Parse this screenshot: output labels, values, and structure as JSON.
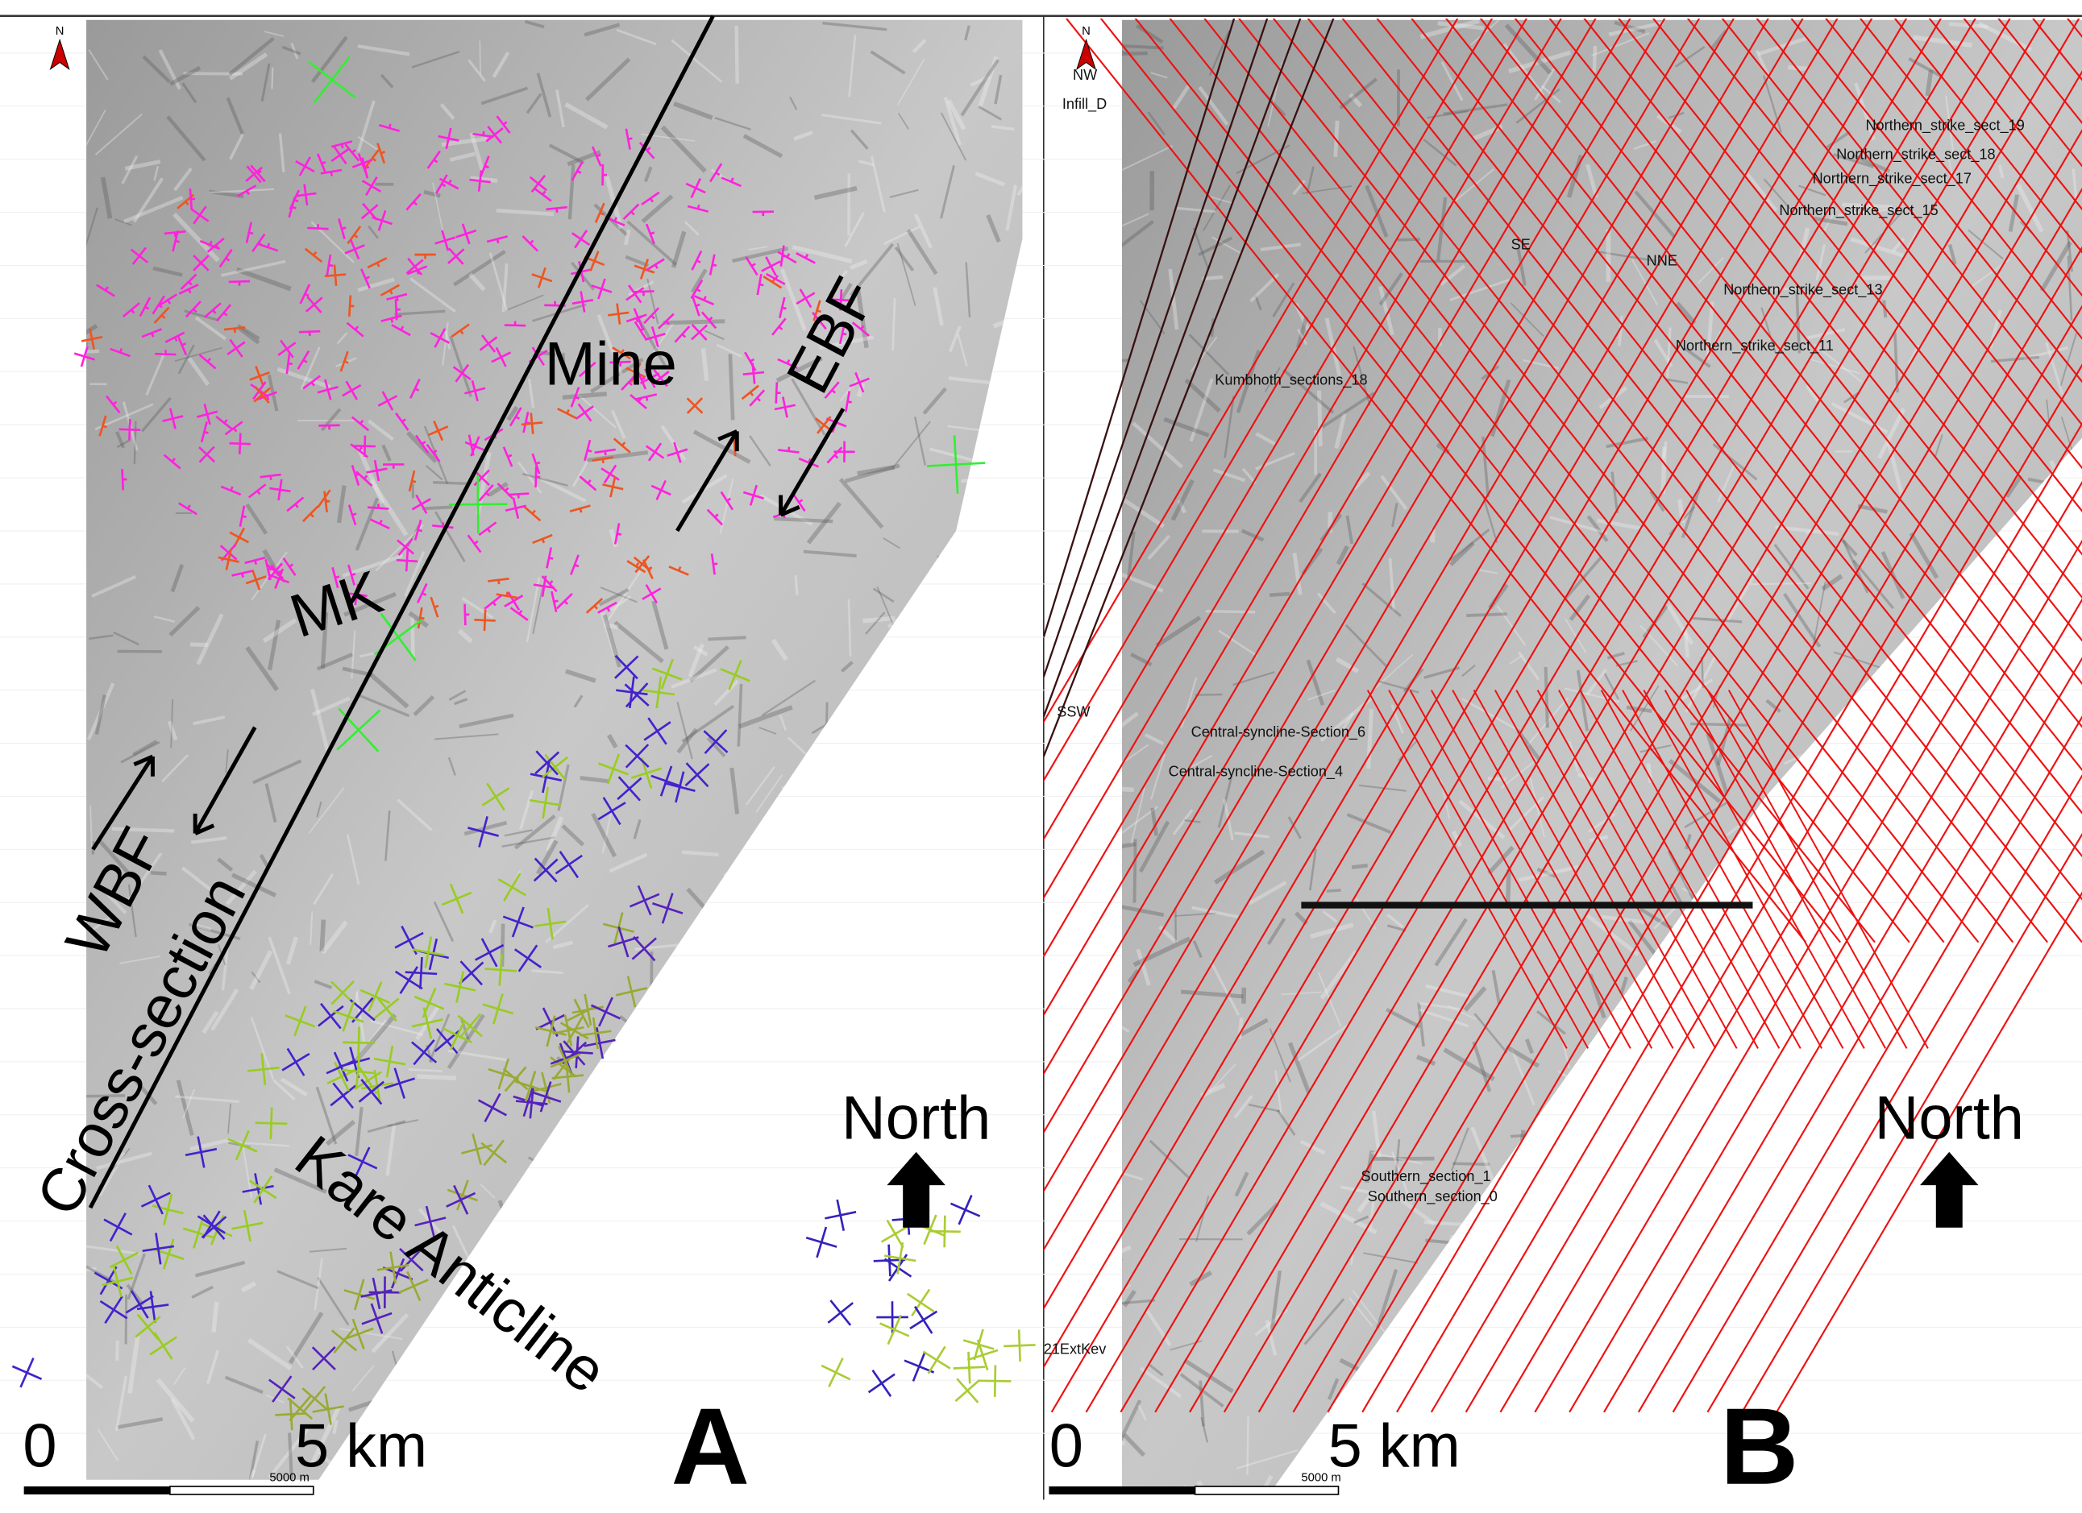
{
  "panels": [
    {
      "letter": "A",
      "north_symbol": "N",
      "north": "North",
      "labels": [
        "Mine",
        "EBF",
        "MK",
        "WBF",
        "Cross-section",
        "Kare Anticline"
      ],
      "scale": {
        "start": "0",
        "end": "5 km",
        "bar": "5000 m"
      }
    },
    {
      "letter": "B",
      "north_symbol": "N",
      "north": "North",
      "labels": [
        "Northern_strike_sect_19",
        "Northern_strike_sect_18",
        "Northern_strike_sect_17",
        "Northern_strike_sect_15",
        "Northern_strike_sect_13",
        "Northern_strike_sect_11",
        "Kumbhoth_sections_18",
        "Central-syncline-Section_6",
        "Central-syncline-Section_4",
        "Southern_section_1",
        "Southern_section_0",
        "Infill_D",
        "NNE",
        "NW",
        "SE",
        "SSW",
        "21ExtKev"
      ],
      "scale": {
        "start": "0",
        "end": "5 km",
        "bar": "5000 m"
      }
    }
  ]
}
